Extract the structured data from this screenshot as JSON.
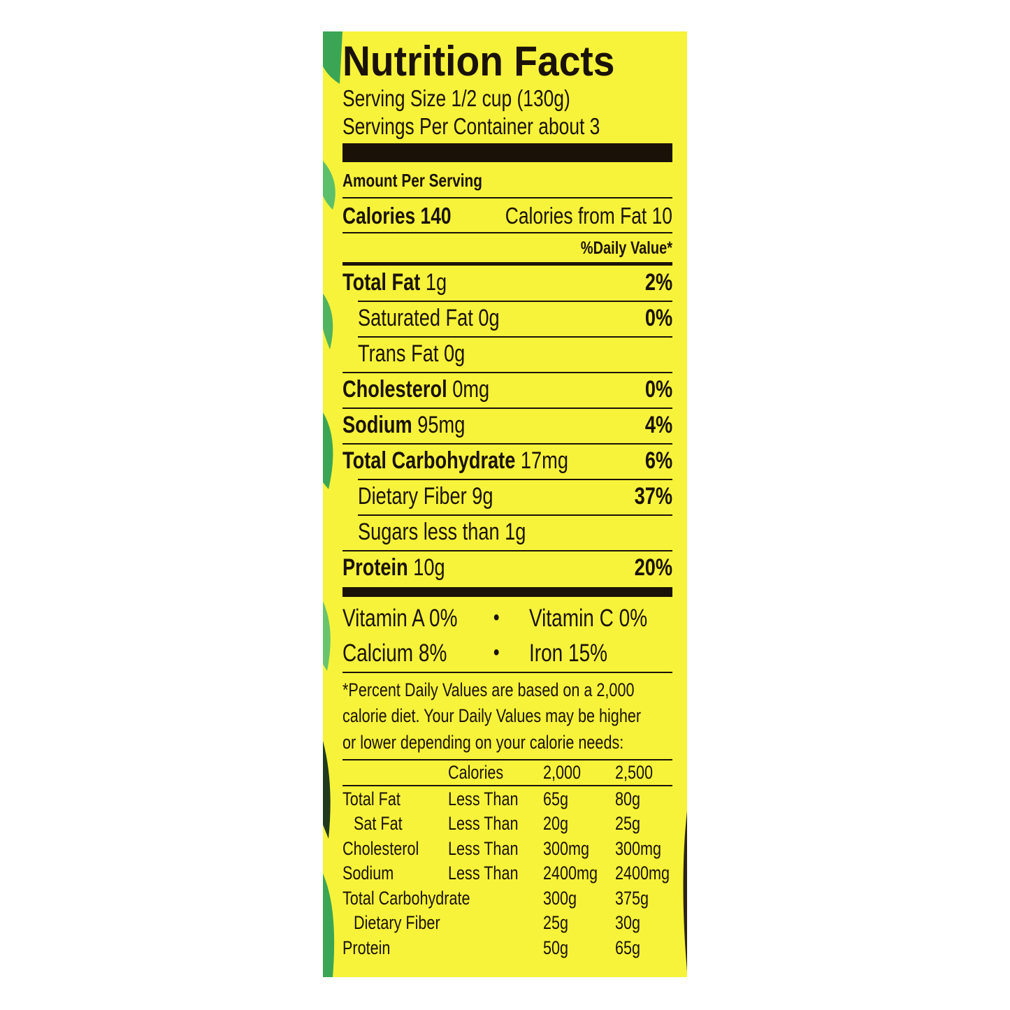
{
  "title": "Nutrition Facts",
  "serving_size": "Serving Size 1/2 cup (130g)",
  "servings_per_container": "Servings Per Container about 3",
  "amount_per_serving": "Amount Per Serving",
  "calories": {
    "label": "Calories 140",
    "from_fat": "Calories from Fat 10"
  },
  "daily_value_header": "%Daily Value*",
  "nutrients": [
    {
      "name": "Total Fat",
      "amount": "1g",
      "dv": "2%",
      "sub": [
        {
          "name": "Saturated Fat",
          "amount": "0g",
          "dv": "0%"
        },
        {
          "name": "Trans Fat",
          "amount": "0g"
        }
      ]
    },
    {
      "name": "Cholesterol",
      "amount": "0mg",
      "dv": "0%"
    },
    {
      "name": "Sodium",
      "amount": "95mg",
      "dv": "4%"
    },
    {
      "name": "Total Carbohydrate",
      "amount": "17mg",
      "dv": "6%",
      "sub": [
        {
          "name": "Dietary Fiber",
          "amount": "9g",
          "dv": "37%"
        },
        {
          "name": "Sugars",
          "amount": "less than 1g"
        }
      ]
    },
    {
      "name": "Protein",
      "amount": "10g",
      "dv": "20%"
    }
  ],
  "vitamins": [
    [
      "Vitamin A 0%",
      "Vitamin C 0%"
    ],
    [
      "Calcium 8%",
      "Iron 15%"
    ]
  ],
  "footnote": [
    "*Percent Daily Values are based on a 2,000",
    "calorie diet. Your Daily Values may be higher",
    "or lower depending on your calorie needs:"
  ],
  "reference_table": {
    "header": [
      "Calories",
      "2,000",
      "2,500"
    ],
    "rows": [
      [
        "Total Fat",
        "Less Than",
        "65g",
        "80g"
      ],
      [
        "Sat Fat",
        "Less Than",
        "20g",
        "25g"
      ],
      [
        "Cholesterol",
        "Less Than",
        "300mg",
        "300mg"
      ],
      [
        "Sodium",
        "Less Than",
        "2400mg",
        "2400mg"
      ],
      [
        "Total Carbohydrate",
        null,
        "300g",
        "375g"
      ],
      [
        "Dietary Fiber",
        null,
        "25g",
        "30g"
      ],
      [
        "Protein",
        null,
        "50g",
        "65g"
      ]
    ]
  }
}
